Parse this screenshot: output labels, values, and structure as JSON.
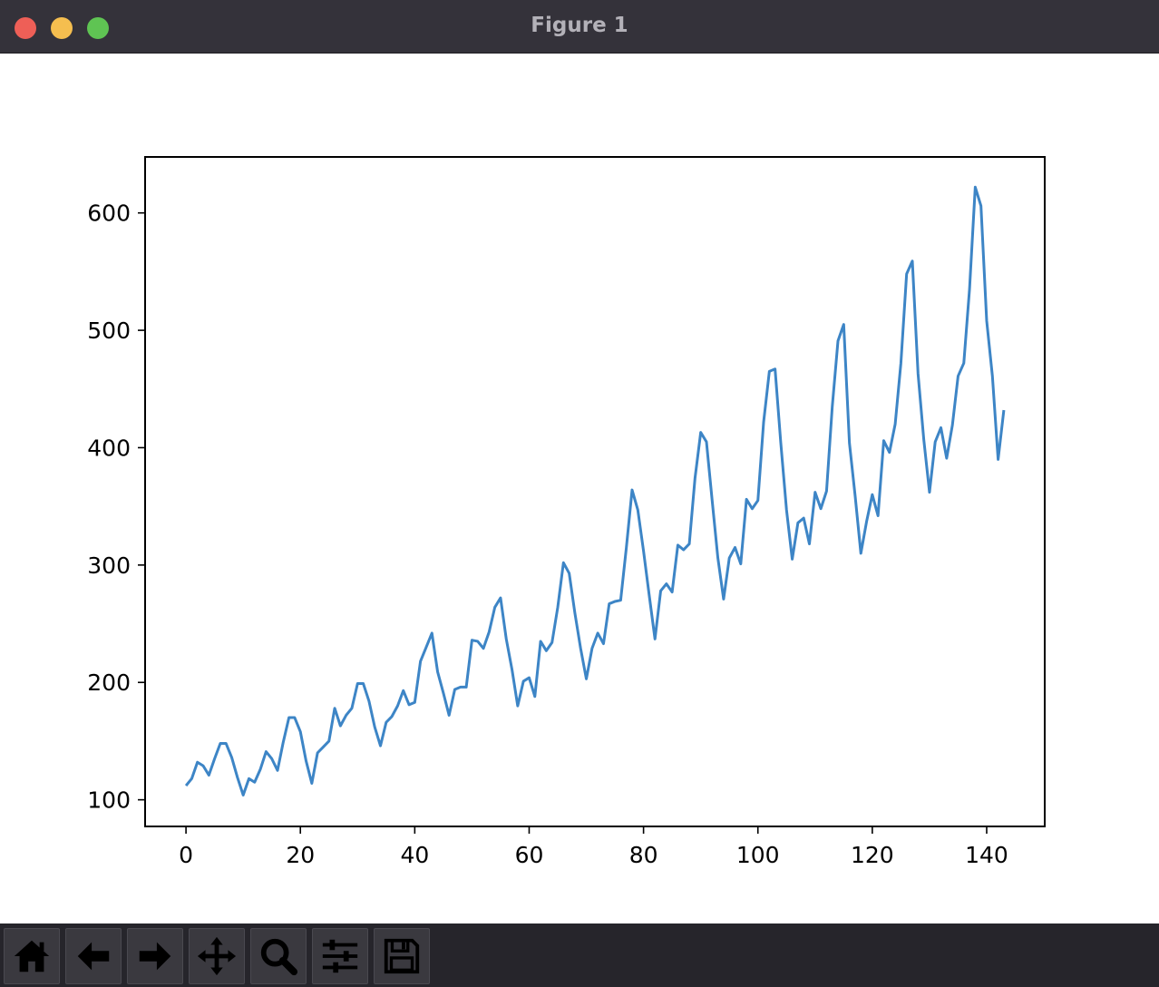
{
  "window": {
    "title": "Figure 1"
  },
  "toolbar": {
    "buttons": [
      {
        "icon": "home-icon",
        "name": "home-button"
      },
      {
        "icon": "back-arrow-icon",
        "name": "back-button"
      },
      {
        "icon": "forward-arrow-icon",
        "name": "forward-button"
      },
      {
        "icon": "pan-icon",
        "name": "pan-button"
      },
      {
        "icon": "zoom-icon",
        "name": "zoom-button"
      },
      {
        "icon": "configure-subplots-icon",
        "name": "configure-subplots-button"
      },
      {
        "icon": "save-icon",
        "name": "save-button"
      }
    ]
  },
  "chart_data": {
    "type": "line",
    "title": "",
    "xlabel": "",
    "ylabel": "",
    "xlim": [
      -7.15,
      150.15
    ],
    "ylim": [
      77.3,
      647.7
    ],
    "xticks": [
      0,
      20,
      40,
      60,
      80,
      100,
      120,
      140
    ],
    "yticks": [
      100,
      200,
      300,
      400,
      500,
      600
    ],
    "grid": false,
    "line_color": "#3d85c6",
    "series": [
      {
        "values": [
          112,
          118,
          132,
          129,
          121,
          135,
          148,
          148,
          136,
          119,
          104,
          118,
          115,
          126,
          141,
          135,
          125,
          149,
          170,
          170,
          158,
          133,
          114,
          140,
          145,
          150,
          178,
          163,
          172,
          178,
          199,
          199,
          184,
          162,
          146,
          166,
          171,
          180,
          193,
          181,
          183,
          218,
          230,
          242,
          209,
          191,
          172,
          194,
          196,
          196,
          236,
          235,
          229,
          243,
          264,
          272,
          237,
          211,
          180,
          201,
          204,
          188,
          235,
          227,
          234,
          264,
          302,
          293,
          259,
          229,
          203,
          229,
          242,
          233,
          267,
          269,
          270,
          315,
          364,
          347,
          312,
          274,
          237,
          278,
          284,
          277,
          317,
          313,
          318,
          374,
          413,
          405,
          355,
          306,
          271,
          306,
          315,
          301,
          356,
          348,
          355,
          422,
          465,
          467,
          404,
          347,
          305,
          336,
          340,
          318,
          362,
          348,
          363,
          435,
          491,
          505,
          404,
          359,
          310,
          337,
          360,
          342,
          406,
          396,
          420,
          472,
          548,
          559,
          463,
          407,
          362,
          405,
          417,
          391,
          419,
          461,
          472,
          535,
          622,
          606,
          508,
          461,
          390,
          432
        ]
      }
    ]
  }
}
